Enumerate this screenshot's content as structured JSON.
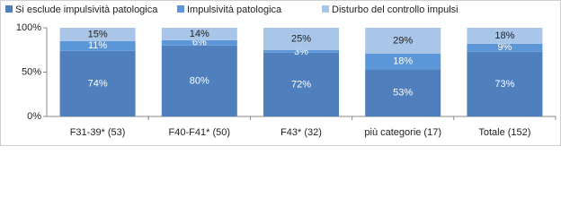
{
  "chart_data": {
    "type": "stacked_bar",
    "categories": [
      "F31-39* (53)",
      "F40-F41* (50)",
      "F43* (32)",
      "più categorie (17)",
      "Totale (152)"
    ],
    "series": [
      {
        "name": "Si esclude impulsività patologica",
        "color": "#4f7fbd",
        "values": [
          74,
          80,
          72,
          53,
          73
        ],
        "value_labels": [
          "74%",
          "80%",
          "72%",
          "53%",
          "73%"
        ]
      },
      {
        "name": "Impulsività patologica",
        "color": "#5b97d8",
        "values": [
          11,
          6,
          3,
          18,
          9
        ],
        "value_labels": [
          "11%",
          "6%",
          "3%",
          "18%",
          "9%"
        ]
      },
      {
        "name": "Disturbo del controllo impulsi",
        "color": "#a9c5e8",
        "values": [
          15,
          14,
          25,
          29,
          18
        ],
        "value_labels": [
          "15%",
          "14%",
          "25%",
          "29%",
          "18%"
        ]
      }
    ],
    "ylim": [
      0,
      100
    ],
    "yticks": [
      {
        "value": 0,
        "label": "0%"
      },
      {
        "value": 50,
        "label": "50%"
      },
      {
        "value": 100,
        "label": "100%"
      }
    ],
    "legend": "top"
  }
}
